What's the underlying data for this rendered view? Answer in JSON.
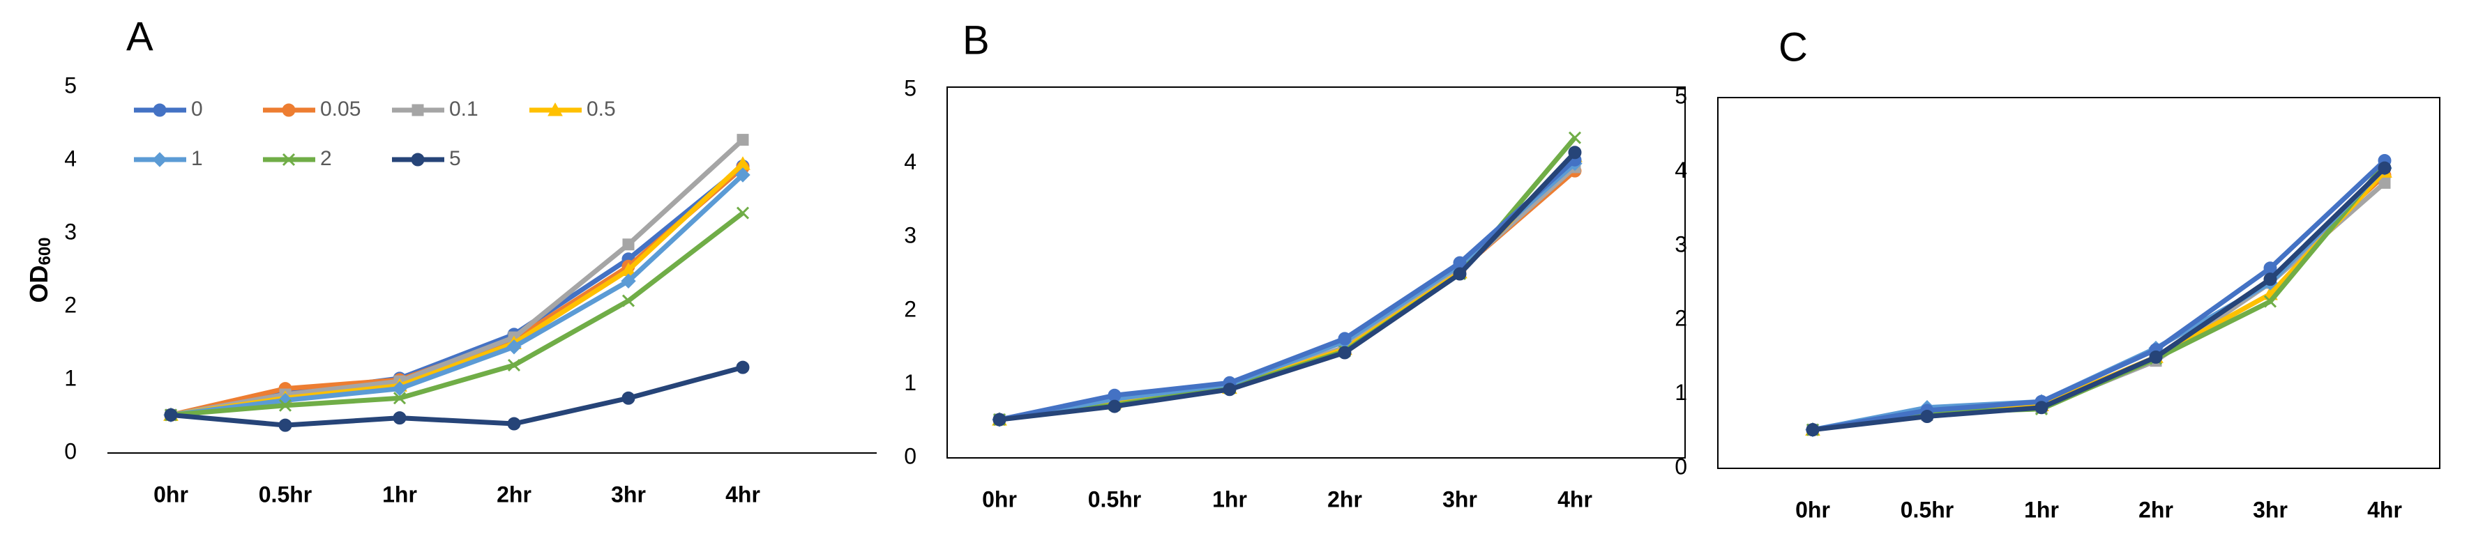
{
  "chart_data": [
    {
      "type": "line",
      "title": "A",
      "y_label": "OD",
      "y_label_sub": "600",
      "frame": false,
      "legend": "top-left",
      "categories": [
        "0hr",
        "0.5hr",
        "1hr",
        "2hr",
        "3hr",
        "4hr"
      ],
      "ylim": [
        0,
        5
      ],
      "yticks": [
        0,
        1,
        2,
        3,
        4,
        5
      ],
      "series": [
        {
          "name": "0",
          "color": "#4472c4",
          "marker": "circle",
          "values": [
            0.52,
            0.82,
            1.02,
            1.62,
            2.65,
            3.92
          ]
        },
        {
          "name": "0.05",
          "color": "#ed7d31",
          "marker": "circle",
          "values": [
            0.52,
            0.88,
            1.0,
            1.55,
            2.55,
            3.9
          ]
        },
        {
          "name": "0.1",
          "color": "#a5a5a5",
          "marker": "square",
          "values": [
            0.52,
            0.8,
            0.98,
            1.58,
            2.85,
            4.28
          ]
        },
        {
          "name": "0.5",
          "color": "#ffc000",
          "marker": "triangle",
          "values": [
            0.52,
            0.75,
            0.92,
            1.5,
            2.5,
            3.95
          ]
        },
        {
          "name": "1",
          "color": "#5b9bd5",
          "marker": "diamond",
          "values": [
            0.52,
            0.72,
            0.88,
            1.45,
            2.35,
            3.8
          ]
        },
        {
          "name": "2",
          "color": "#70ad47",
          "marker": "cross",
          "values": [
            0.52,
            0.65,
            0.75,
            1.2,
            2.08,
            3.28
          ]
        },
        {
          "name": "5",
          "color": "#264478",
          "marker": "circle",
          "values": [
            0.52,
            0.38,
            0.48,
            0.4,
            0.75,
            1.17
          ]
        }
      ]
    },
    {
      "type": "line",
      "title": "B",
      "frame": true,
      "categories": [
        "0hr",
        "0.5hr",
        "1hr",
        "2hr",
        "3hr",
        "4hr"
      ],
      "ylim": [
        0,
        5
      ],
      "yticks": [
        0,
        1,
        2,
        3,
        4,
        5
      ],
      "series": [
        {
          "color": "#ed7d31",
          "marker": "circle",
          "values": [
            0.52,
            0.78,
            0.98,
            1.5,
            2.55,
            3.9
          ]
        },
        {
          "color": "#a5a5a5",
          "marker": "square",
          "values": [
            0.52,
            0.78,
            0.98,
            1.5,
            2.55,
            3.95
          ]
        },
        {
          "color": "#ffc000",
          "marker": "triangle",
          "values": [
            0.52,
            0.75,
            0.95,
            1.48,
            2.52,
            4.1
          ]
        },
        {
          "color": "#70ad47",
          "marker": "cross",
          "values": [
            0.52,
            0.72,
            0.95,
            1.45,
            2.5,
            4.35
          ]
        },
        {
          "color": "#5b9bd5",
          "marker": "diamond",
          "values": [
            0.52,
            0.8,
            1.0,
            1.58,
            2.62,
            4.0
          ]
        },
        {
          "color": "#4472c4",
          "marker": "circle",
          "values": [
            0.52,
            0.85,
            1.02,
            1.62,
            2.65,
            4.05
          ]
        },
        {
          "color": "#264478",
          "marker": "circle",
          "values": [
            0.52,
            0.7,
            0.93,
            1.43,
            2.5,
            4.15
          ]
        }
      ]
    },
    {
      "type": "line",
      "title": "C",
      "frame": true,
      "categories": [
        "0hr",
        "0.5hr",
        "1hr",
        "2hr",
        "3hr",
        "4hr"
      ],
      "ylim": [
        0,
        5
      ],
      "yticks": [
        0,
        1,
        2,
        3,
        4,
        5
      ],
      "series": [
        {
          "color": "#ed7d31",
          "marker": "circle",
          "values": [
            0.52,
            0.75,
            0.85,
            1.5,
            2.55,
            3.95
          ]
        },
        {
          "color": "#a5a5a5",
          "marker": "square",
          "values": [
            0.52,
            0.72,
            0.82,
            1.45,
            2.5,
            3.85
          ]
        },
        {
          "color": "#ffc000",
          "marker": "triangle",
          "values": [
            0.52,
            0.78,
            0.85,
            1.5,
            2.35,
            4.0
          ]
        },
        {
          "color": "#70ad47",
          "marker": "cross",
          "values": [
            0.52,
            0.75,
            0.8,
            1.48,
            2.25,
            4.1
          ]
        },
        {
          "color": "#5b9bd5",
          "marker": "diamond",
          "values": [
            0.52,
            0.82,
            0.9,
            1.62,
            2.5,
            4.05
          ]
        },
        {
          "color": "#4472c4",
          "marker": "circle",
          "values": [
            0.52,
            0.78,
            0.9,
            1.6,
            2.7,
            4.15
          ]
        },
        {
          "color": "#264478",
          "marker": "circle",
          "values": [
            0.52,
            0.7,
            0.82,
            1.5,
            2.55,
            4.05
          ]
        }
      ]
    }
  ]
}
